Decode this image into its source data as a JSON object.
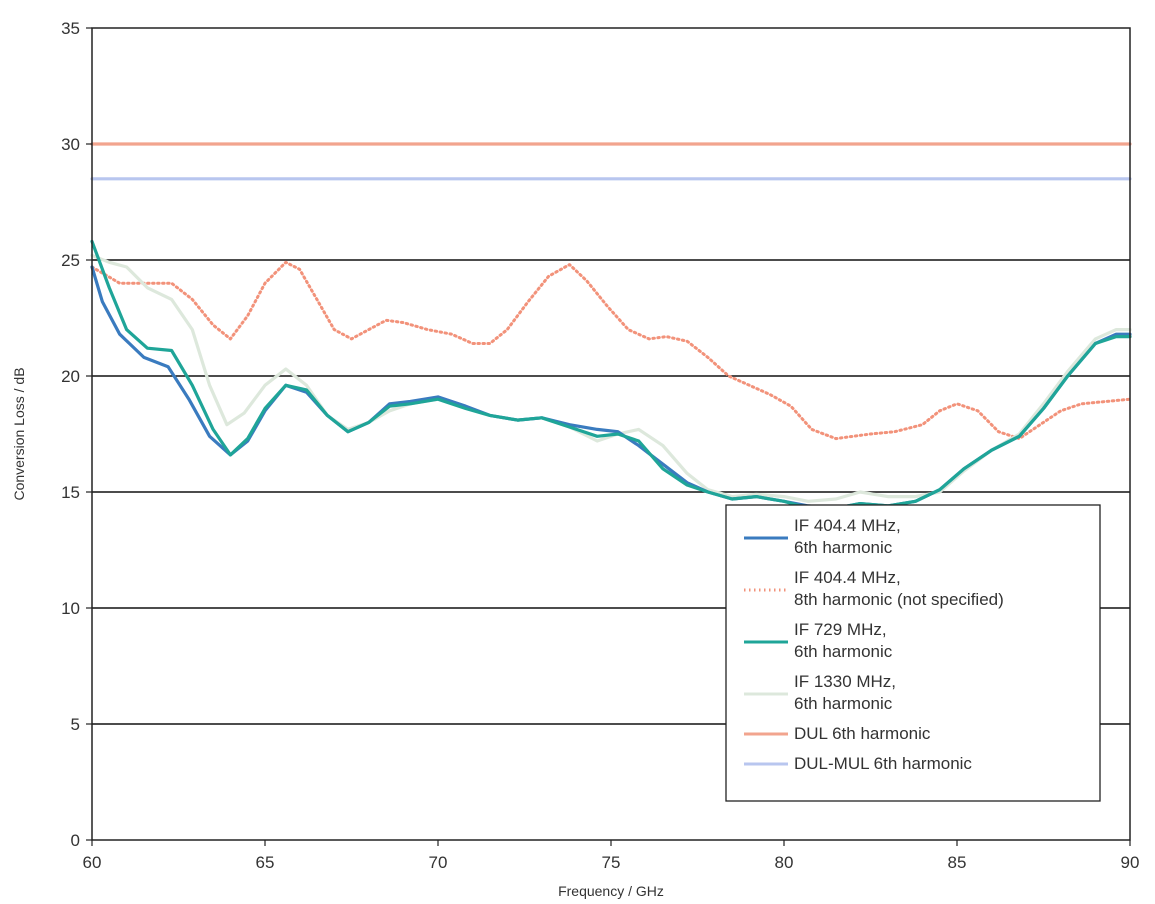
{
  "chart_data": {
    "type": "line",
    "xlabel": "Frequency / GHz",
    "ylabel": "Conversion Loss / dB",
    "xlim": [
      60,
      90
    ],
    "ylim": [
      0,
      35
    ],
    "xticks": [
      60,
      65,
      70,
      75,
      80,
      85,
      90
    ],
    "yticks": [
      0,
      5,
      10,
      15,
      20,
      25,
      30,
      35
    ],
    "grid": "horizontal",
    "legend_position": "bottom-right",
    "series": [
      {
        "name": "IF 404.4 MHz, 6th harmonic",
        "label_lines": [
          "IF 404.4 MHz,",
          "6th harmonic"
        ],
        "color": "#3a7bbf",
        "style": "solid",
        "x": [
          60,
          60.3,
          60.8,
          61.5,
          62.2,
          62.8,
          63.4,
          64.0,
          64.5,
          65.0,
          65.6,
          66.2,
          66.8,
          67.4,
          68.0,
          68.6,
          69.2,
          70.0,
          70.8,
          71.5,
          72.3,
          73.0,
          73.8,
          74.6,
          75.2,
          75.8,
          76.5,
          77.2,
          77.8,
          78.5,
          79.2,
          80.0,
          80.7,
          81.5,
          82.2,
          83.0,
          83.8,
          84.5,
          85.2,
          86.0,
          86.8,
          87.5,
          88.2,
          89.0,
          89.6,
          90.0
        ],
        "y": [
          24.7,
          23.2,
          21.8,
          20.8,
          20.4,
          19.0,
          17.4,
          16.6,
          17.2,
          18.5,
          19.6,
          19.3,
          18.3,
          17.6,
          18.0,
          18.8,
          18.9,
          19.1,
          18.7,
          18.3,
          18.1,
          18.2,
          17.9,
          17.7,
          17.6,
          17.0,
          16.2,
          15.4,
          15.0,
          14.7,
          14.8,
          14.6,
          14.4,
          14.3,
          14.5,
          14.4,
          14.6,
          15.1,
          16.0,
          16.8,
          17.4,
          18.6,
          20.0,
          21.4,
          21.8,
          21.8
        ]
      },
      {
        "name": "IF 404.4 MHz, 8th harmonic (not specified)",
        "label_lines": [
          "IF 404.4 MHz,",
          "8th harmonic (not specified)"
        ],
        "color": "#f2927a",
        "style": "dotted",
        "x": [
          60,
          60.8,
          61.6,
          62.3,
          62.9,
          63.5,
          64.0,
          64.5,
          65.0,
          65.6,
          66.0,
          66.5,
          67.0,
          67.5,
          68.0,
          68.5,
          69.0,
          69.7,
          70.4,
          71.0,
          71.5,
          72.0,
          72.6,
          73.2,
          73.8,
          74.3,
          74.9,
          75.5,
          76.1,
          76.6,
          77.2,
          77.8,
          78.4,
          79.0,
          79.6,
          80.2,
          80.8,
          81.5,
          82.0,
          82.5,
          83.2,
          84.0,
          84.5,
          85.0,
          85.6,
          86.2,
          86.8,
          87.4,
          88.0,
          88.6,
          89.3,
          90.0
        ],
        "y": [
          24.7,
          24.0,
          24.0,
          24.0,
          23.3,
          22.2,
          21.6,
          22.6,
          24.0,
          24.9,
          24.6,
          23.3,
          22.0,
          21.6,
          22.0,
          22.4,
          22.3,
          22.0,
          21.8,
          21.4,
          21.4,
          22.0,
          23.2,
          24.3,
          24.8,
          24.1,
          23.0,
          22.0,
          21.6,
          21.7,
          21.5,
          20.8,
          20.0,
          19.6,
          19.2,
          18.7,
          17.7,
          17.3,
          17.4,
          17.5,
          17.6,
          17.9,
          18.5,
          18.8,
          18.5,
          17.6,
          17.3,
          17.9,
          18.5,
          18.8,
          18.9,
          19.0
        ]
      },
      {
        "name": "IF 729 MHz, 6th harmonic",
        "label_lines": [
          "IF 729 MHz,",
          "6th harmonic"
        ],
        "color": "#1fa598",
        "style": "solid",
        "x": [
          60,
          60.5,
          61.0,
          61.6,
          62.3,
          62.9,
          63.5,
          64.0,
          64.5,
          65.0,
          65.6,
          66.2,
          66.8,
          67.4,
          68.0,
          68.6,
          69.2,
          70.0,
          70.8,
          71.5,
          72.3,
          73.0,
          73.8,
          74.6,
          75.2,
          75.8,
          76.5,
          77.2,
          77.8,
          78.5,
          79.2,
          80.0,
          80.7,
          81.5,
          82.2,
          83.0,
          83.8,
          84.5,
          85.2,
          86.0,
          86.8,
          87.5,
          88.2,
          89.0,
          89.6,
          90.0
        ],
        "y": [
          25.8,
          23.8,
          22.0,
          21.2,
          21.1,
          19.6,
          17.7,
          16.6,
          17.3,
          18.6,
          19.6,
          19.4,
          18.3,
          17.6,
          18.0,
          18.7,
          18.8,
          19.0,
          18.6,
          18.3,
          18.1,
          18.2,
          17.8,
          17.4,
          17.5,
          17.2,
          16.0,
          15.3,
          15.0,
          14.7,
          14.8,
          14.6,
          14.3,
          14.3,
          14.5,
          14.4,
          14.6,
          15.1,
          16.0,
          16.8,
          17.4,
          18.6,
          20.0,
          21.4,
          21.7,
          21.7
        ]
      },
      {
        "name": "IF 1330 MHz, 6th harmonic",
        "label_lines": [
          "IF 1330 MHz,",
          "6th harmonic"
        ],
        "color": "#dde8dc",
        "style": "solid",
        "x": [
          60,
          60.5,
          61.0,
          61.6,
          62.3,
          62.9,
          63.4,
          63.9,
          64.4,
          65.0,
          65.6,
          66.2,
          66.8,
          67.4,
          68.0,
          68.6,
          69.2,
          70.0,
          70.8,
          71.5,
          72.3,
          73.0,
          73.8,
          74.6,
          75.2,
          75.8,
          76.5,
          77.2,
          77.8,
          78.5,
          79.2,
          80.0,
          80.7,
          81.5,
          82.2,
          83.0,
          83.8,
          84.5,
          85.2,
          86.0,
          86.8,
          87.5,
          88.2,
          89.0,
          89.6,
          90.0
        ],
        "y": [
          25.2,
          24.9,
          24.7,
          23.8,
          23.3,
          22.0,
          19.6,
          17.9,
          18.4,
          19.6,
          20.3,
          19.6,
          18.3,
          17.7,
          18.0,
          18.5,
          18.8,
          19.0,
          18.7,
          18.3,
          18.1,
          18.2,
          17.8,
          17.2,
          17.5,
          17.7,
          17.0,
          15.8,
          15.1,
          14.8,
          14.9,
          14.8,
          14.6,
          14.7,
          15.0,
          14.8,
          14.8,
          15.0,
          15.9,
          16.8,
          17.5,
          18.8,
          20.2,
          21.6,
          22.0,
          22.0
        ]
      },
      {
        "name": "DUL 6th harmonic",
        "label_lines": [
          "DUL 6th harmonic"
        ],
        "color": "#f2a48e",
        "style": "solid",
        "x": [
          60,
          90
        ],
        "y": [
          30.0,
          30.0
        ]
      },
      {
        "name": "DUL-MUL 6th harmonic",
        "label_lines": [
          "DUL-MUL 6th harmonic"
        ],
        "color": "#b8c6ef",
        "style": "solid",
        "x": [
          60,
          90
        ],
        "y": [
          28.5,
          28.5
        ]
      }
    ]
  }
}
